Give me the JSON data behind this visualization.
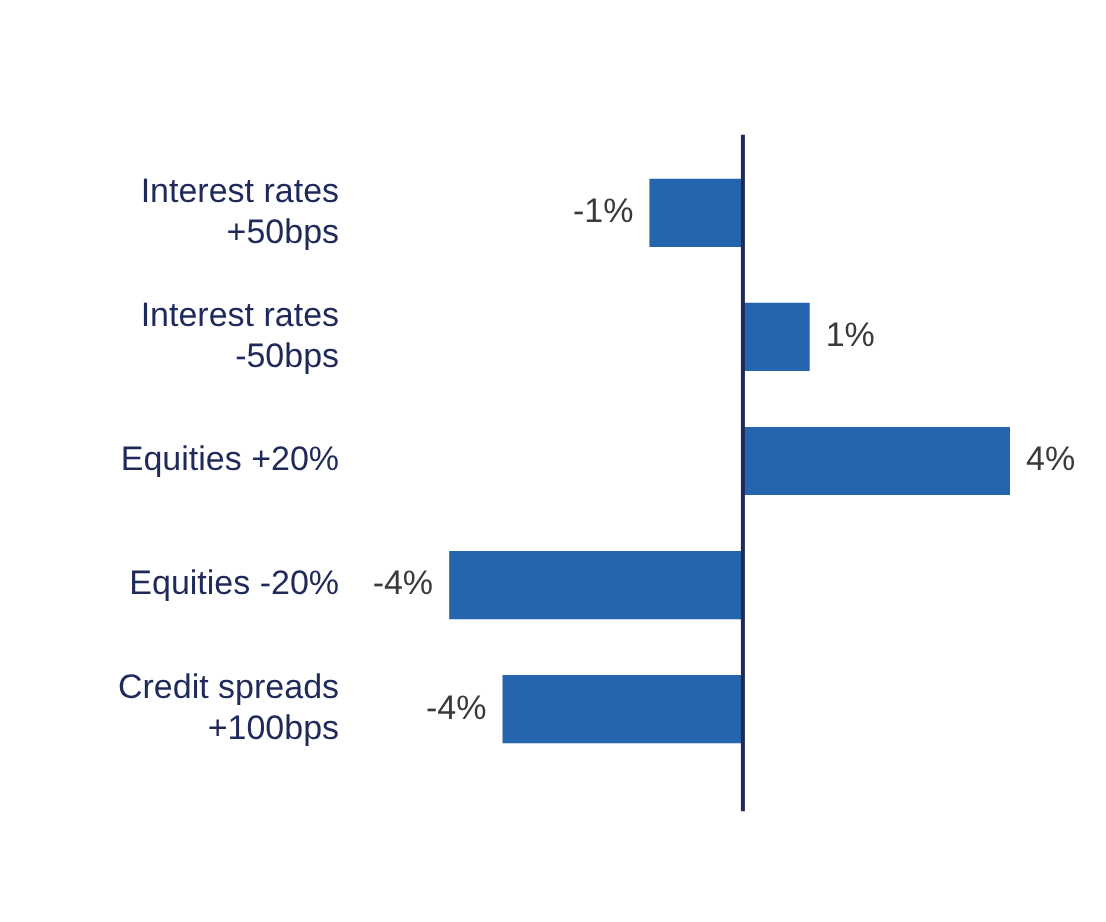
{
  "chart_data": {
    "type": "bar",
    "orientation": "horizontal",
    "categories": [
      "Interest rates +50bps",
      "Interest rates -50bps",
      "Equities +20%",
      "Equities -20%",
      "Credit spreads +100bps"
    ],
    "values": [
      -1.4,
      1,
      4,
      -4.4,
      -3.6
    ],
    "value_labels": [
      "-1%",
      "1%",
      "4%",
      "-4%",
      "-4%"
    ],
    "color": "#2565ae",
    "tick_labels": "y",
    "grid": false,
    "legend": false
  }
}
